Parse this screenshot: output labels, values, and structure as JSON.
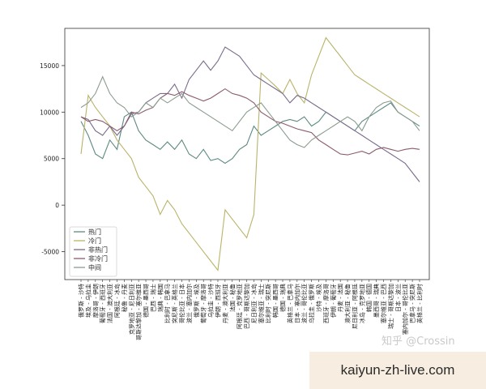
{
  "chart_data": {
    "type": "line",
    "title": "",
    "xlabel": "",
    "ylabel": "",
    "ylim": [
      -8000,
      19000
    ],
    "yticks": [
      -5000,
      0,
      5000,
      10000,
      15000
    ],
    "grid": false,
    "legend_position": "lower-left",
    "categories": [
      "俄罗斯 - 沙特",
      "埃及 - 乌拉圭",
      "摩洛哥 - 伊朗",
      "葡萄牙 - 西班牙",
      "法国 - 澳大利亚",
      "阿根廷 - 冰岛",
      "秘鲁 - 丹麦",
      "克罗地亚 - 尼日利亚",
      "哥斯达黎加 - 塞尔维亚",
      "德国 - 墨西哥",
      "巴西 - 瑞士",
      "瑞典 - 韩国",
      "比利时 - 巴拿马",
      "突尼斯 - 英格兰",
      "哥伦比亚 - 日本",
      "波兰 - 塞内加尔",
      "俄罗斯 - 埃及",
      "葡萄牙 - 摩洛哥",
      "乌拉圭 - 沙特",
      "伊朗 - 西班牙",
      "丹麦 - 澳大利亚",
      "法国 - 秘鲁",
      "阿根廷 - 克罗地亚",
      "巴西 - 哥斯达黎加",
      "尼日利亚 - 冰岛",
      "塞尔维亚 - 瑞士",
      "比利时 - 突尼斯",
      "韩国 - 墨西哥",
      "德国 - 瑞典",
      "英格兰 - 巴拿马",
      "日本 - 塞内加尔",
      "波兰 - 哥伦比亚",
      "乌拉圭 - 俄罗斯",
      "沙特 - 埃及",
      "西班牙 - 摩洛哥",
      "伊朗 - 葡萄牙",
      "丹麦 - 法国",
      "澳大利亚 - 秘鲁",
      "尼日利亚 - 阿根廷",
      "冰岛 - 克罗地亚",
      "韩国 - 德国",
      "墨西哥 - 瑞典",
      "塞尔维亚 - 巴西",
      "瑞士 - 哥斯达黎加",
      "日本 - 波兰",
      "塞内加尔 - 哥伦比亚",
      "巴拿马 - 突尼斯",
      "英格兰 - 比利时"
    ],
    "series": [
      {
        "name": "热门",
        "color": "#5d8a82",
        "values": [
          9000,
          7500,
          5500,
          5000,
          7000,
          6000,
          9500,
          10000,
          8000,
          7000,
          6500,
          6000,
          6800,
          6000,
          7000,
          5500,
          5000,
          6000,
          4800,
          5000,
          4500,
          5000,
          6000,
          6500,
          8500,
          7500,
          8000,
          8500,
          9000,
          9200,
          9000,
          9500,
          8500,
          9000,
          10000,
          9500,
          9000,
          8500,
          8000,
          9000,
          9500,
          10000,
          10500,
          11000,
          10000,
          9500,
          9000,
          8500
        ]
      },
      {
        "name": "冷门",
        "color": "#b9b46a",
        "values": [
          5500,
          11800,
          10500,
          9500,
          8500,
          7000,
          6000,
          5000,
          3000,
          2000,
          1000,
          -1000,
          500,
          -500,
          -2000,
          -3000,
          -4000,
          -5000,
          -6000,
          -7000,
          -500,
          -1500,
          -2500,
          -3500,
          -1000,
          14200,
          13500,
          12800,
          12000,
          13500,
          12000,
          11000,
          14000,
          16000,
          18000,
          17000,
          16000,
          15000,
          14000,
          13500,
          13000,
          12500,
          12000,
          11500,
          11000,
          10500,
          10000,
          9500
        ]
      },
      {
        "name": "非热门",
        "color": "#7a6a8c",
        "values": [
          9500,
          9200,
          8000,
          7500,
          8500,
          7500,
          8500,
          9800,
          10000,
          11000,
          11500,
          12000,
          12000,
          13000,
          11500,
          13500,
          14500,
          15500,
          14500,
          15500,
          17000,
          16500,
          16000,
          15000,
          14000,
          13500,
          13000,
          12500,
          12000,
          11000,
          11800,
          11500,
          11000,
          10500,
          10000,
          9500,
          9000,
          8500,
          8000,
          7500,
          7000,
          6500,
          6000,
          5500,
          5000,
          4500,
          3500,
          2500
        ]
      },
      {
        "name": "非冷门",
        "color": "#8b5a6d",
        "values": [
          9500,
          9000,
          9200,
          9000,
          8500,
          8000,
          8500,
          10000,
          9800,
          10200,
          10500,
          11500,
          12000,
          11800,
          12200,
          11800,
          11500,
          11200,
          11500,
          12000,
          12500,
          12000,
          11800,
          11500,
          11000,
          10000,
          9500,
          9000,
          8800,
          8500,
          8200,
          8000,
          7800,
          7000,
          6500,
          6000,
          5500,
          5400,
          5600,
          5800,
          5500,
          6000,
          6200,
          6000,
          5800,
          6000,
          6100,
          6000
        ]
      },
      {
        "name": "中间",
        "color": "#8a9c8e",
        "values": [
          10500,
          11000,
          12000,
          13800,
          12000,
          11000,
          10500,
          9500,
          10000,
          11000,
          10500,
          11500,
          11000,
          11500,
          12000,
          11000,
          10500,
          10000,
          9500,
          9000,
          8500,
          8000,
          9000,
          10000,
          10500,
          11000,
          10000,
          9000,
          8000,
          7000,
          6500,
          6200,
          7000,
          7500,
          8000,
          8500,
          9000,
          9500,
          9000,
          8000,
          9500,
          10500,
          11000,
          11200,
          10000,
          9500,
          9000,
          8000
        ]
      }
    ]
  },
  "watermark": "知乎 @Crossin",
  "banner_text": "kaiyun-zh-live.com"
}
